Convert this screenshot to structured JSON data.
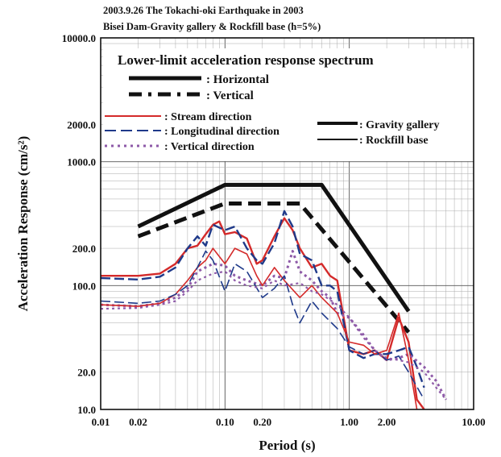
{
  "header": {
    "title_line1": "2003.9.26 The Tokachi-oki Earthquake in 2003",
    "title_line2": "Bisei Dam-Gravity gallery & Rockfill base (h=5%)"
  },
  "chart_data": {
    "type": "line",
    "title": "Lower-limit acceleration response spectrum",
    "xlabel": "Period (s)",
    "ylabel": "Acceleration Response (cm/s²)",
    "x_scale": "log",
    "y_scale": "log",
    "xlim": [
      0.01,
      10.0
    ],
    "ylim": [
      10.0,
      10000.0
    ],
    "x_ticks": [
      0.01,
      0.02,
      0.1,
      0.2,
      1.0,
      2.0,
      10.0
    ],
    "x_tick_labels": [
      "0.01",
      "0.02",
      "0.10",
      "0.20",
      "1.00",
      "2.00",
      "10.00"
    ],
    "y_ticks": [
      10,
      20,
      100,
      200,
      1000,
      2000,
      10000
    ],
    "y_tick_labels": [
      "10.0",
      "20.0",
      "100.0",
      "200.0",
      "1000.0",
      "2000.0",
      "10000.0"
    ],
    "grid": true,
    "legend_placement": "top",
    "legend": {
      "lower_limit_heading": "Lower-limit acceleration response spectrum",
      "horizontal": ": Horizontal",
      "vertical": ": Vertical",
      "stream": ": Stream direction",
      "longitudinal": ": Longitudinal direction",
      "vertical_dir": ": Vertical direction",
      "gravity": ": Gravity gallery",
      "rockfill": ": Rockfill base"
    },
    "colors": {
      "stream": "#d42a2a",
      "longitudinal": "#1f3a8a",
      "vertical_dir": "#8e5aa8",
      "limit": "#111111"
    },
    "series": [
      {
        "name": "Horizontal",
        "x": [
          0.02,
          0.1,
          0.6,
          3.0
        ],
        "y": [
          300,
          650,
          650,
          62
        ]
      },
      {
        "name": "Vertical",
        "x": [
          0.02,
          0.1,
          0.4,
          3.0
        ],
        "y": [
          250,
          460,
          460,
          42
        ]
      },
      {
        "name": "Stream direction",
        "location": "Gravity gallery",
        "x": [
          0.01,
          0.02,
          0.03,
          0.04,
          0.05,
          0.06,
          0.07,
          0.08,
          0.09,
          0.1,
          0.12,
          0.15,
          0.18,
          0.2,
          0.25,
          0.3,
          0.35,
          0.4,
          0.5,
          0.6,
          0.7,
          0.8,
          1.0,
          1.3,
          1.6,
          2.0,
          2.5,
          3.0,
          3.5,
          4.0
        ],
        "y": [
          120,
          120,
          125,
          150,
          200,
          210,
          260,
          310,
          330,
          260,
          270,
          240,
          150,
          160,
          250,
          350,
          280,
          200,
          140,
          150,
          120,
          110,
          30,
          28,
          30,
          25,
          55,
          35,
          12,
          9
        ]
      },
      {
        "name": "Longitudinal direction",
        "location": "Gravity gallery",
        "x": [
          0.01,
          0.02,
          0.03,
          0.04,
          0.05,
          0.06,
          0.07,
          0.08,
          0.1,
          0.12,
          0.15,
          0.18,
          0.2,
          0.25,
          0.3,
          0.35,
          0.4,
          0.5,
          0.6,
          0.7,
          0.8,
          1.0,
          1.3,
          1.6,
          2.0,
          2.5,
          3.0,
          3.5,
          4.0
        ],
        "y": [
          115,
          112,
          118,
          140,
          200,
          250,
          210,
          310,
          280,
          300,
          200,
          160,
          150,
          220,
          400,
          300,
          180,
          160,
          100,
          100,
          90,
          30,
          26,
          28,
          28,
          30,
          32,
          22,
          15
        ]
      },
      {
        "name": "Vertical direction",
        "location": "Gravity gallery",
        "x": [
          0.01,
          0.02,
          0.03,
          0.04,
          0.05,
          0.06,
          0.08,
          0.1,
          0.12,
          0.15,
          0.2,
          0.25,
          0.3,
          0.35,
          0.4,
          0.5,
          0.6,
          0.7,
          0.8,
          1.0,
          1.3,
          1.6,
          2.0,
          2.5,
          3.0,
          4.0,
          5.0,
          6.0
        ],
        "y": [
          70,
          68,
          72,
          80,
          95,
          130,
          150,
          145,
          120,
          110,
          100,
          120,
          115,
          190,
          130,
          110,
          90,
          80,
          60,
          55,
          40,
          30,
          25,
          26,
          28,
          22,
          17,
          12
        ]
      },
      {
        "name": "Stream direction",
        "location": "Rockfill base",
        "x": [
          0.01,
          0.02,
          0.03,
          0.04,
          0.05,
          0.06,
          0.07,
          0.08,
          0.1,
          0.12,
          0.15,
          0.18,
          0.2,
          0.25,
          0.3,
          0.4,
          0.5,
          0.6,
          0.8,
          1.0,
          1.3,
          1.6,
          2.0,
          2.5,
          3.0,
          3.5
        ],
        "y": [
          70,
          68,
          72,
          85,
          110,
          140,
          160,
          200,
          150,
          200,
          180,
          120,
          100,
          140,
          110,
          80,
          100,
          80,
          60,
          35,
          33,
          28,
          30,
          60,
          25,
          10
        ]
      },
      {
        "name": "Longitudinal direction",
        "location": "Rockfill base",
        "x": [
          0.01,
          0.02,
          0.03,
          0.04,
          0.05,
          0.06,
          0.07,
          0.08,
          0.1,
          0.12,
          0.15,
          0.2,
          0.25,
          0.3,
          0.35,
          0.4,
          0.5,
          0.6,
          0.8,
          1.0,
          1.3,
          1.6,
          2.0,
          2.5,
          3.0,
          4.0
        ],
        "y": [
          75,
          72,
          75,
          85,
          100,
          140,
          190,
          160,
          90,
          150,
          130,
          80,
          95,
          120,
          70,
          50,
          75,
          60,
          45,
          32,
          28,
          30,
          25,
          27,
          20,
          12
        ]
      },
      {
        "name": "Vertical direction",
        "location": "Rockfill base",
        "x": [
          0.01,
          0.02,
          0.03,
          0.04,
          0.05,
          0.06,
          0.08,
          0.1,
          0.12,
          0.15,
          0.2,
          0.25,
          0.3,
          0.4,
          0.5,
          0.6,
          0.8,
          1.0,
          1.3,
          1.6,
          2.0,
          2.5,
          3.0,
          4.0,
          5.0,
          6.0
        ],
        "y": [
          65,
          66,
          70,
          75,
          90,
          110,
          125,
          130,
          110,
          100,
          95,
          110,
          100,
          105,
          90,
          85,
          70,
          55,
          38,
          30,
          26,
          25,
          24,
          20,
          15,
          12
        ]
      }
    ]
  }
}
